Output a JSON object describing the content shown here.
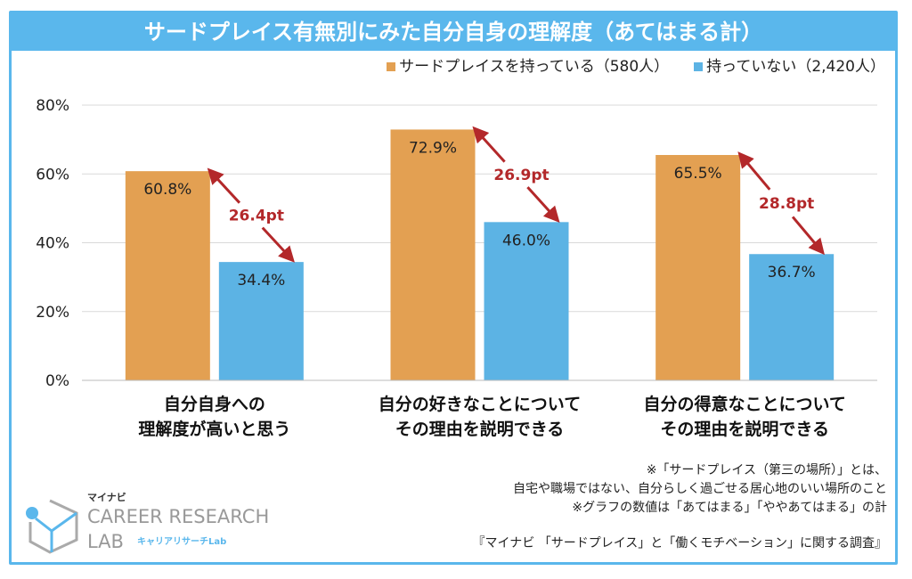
{
  "title": "サードプレイス有無別にみた自分自身の理解度（あてはまる計）",
  "chart_data": {
    "type": "bar",
    "categories": [
      [
        "自分自身への",
        "理解度が高いと思う"
      ],
      [
        "自分の好きなことについて",
        "その理由を説明できる"
      ],
      [
        "自分の得意なことについて",
        "その理由を説明できる"
      ]
    ],
    "series": [
      {
        "name": "サードプレイスを持っている（580人）",
        "color": "#e3a052",
        "values": [
          60.8,
          72.9,
          65.5
        ],
        "labels": [
          "60.8%",
          "72.9%",
          "65.5%"
        ]
      },
      {
        "name": "持っていない（2,420人）",
        "color": "#5cb3e4",
        "values": [
          34.4,
          46.0,
          36.7
        ],
        "labels": [
          "34.4%",
          "46.0%",
          "36.7%"
        ]
      }
    ],
    "differences": [
      "26.4pt",
      "26.9pt",
      "28.8pt"
    ],
    "difference_color": "#b3282a",
    "ylim": [
      0,
      80
    ],
    "yticks": [
      "0%",
      "20%",
      "40%",
      "60%",
      "80%"
    ],
    "grid": true,
    "legend_position": "top-right"
  },
  "notes": [
    "※「サードプレイス（第三の場所）」とは、",
    "自宅や職場ではない、自分らしく過ごせる居心地のいい場所のこと",
    "※グラフの数値は「あてはまる」「ややあてはまる」の計"
  ],
  "source": "『マイナビ 「サードプレイス」と「働くモチベーション」に関する調査』",
  "logo": {
    "top": "マイナビ",
    "line1": "CAREER RESEARCH",
    "line2": "LAB",
    "sub": "キャリアリサーチLab"
  }
}
